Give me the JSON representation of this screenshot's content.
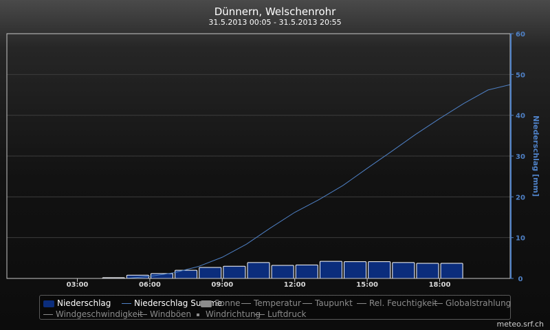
{
  "chart_data": {
    "type": "bar",
    "title": "Dünnern, Welschenrohr",
    "subtitle": "31.5.2013 00:05 - 31.5.2013 20:55",
    "x_ticks": [
      "03:00",
      "06:00",
      "09:00",
      "12:00",
      "15:00",
      "18:00"
    ],
    "x_tick_hours": [
      3,
      6,
      9,
      12,
      15,
      18
    ],
    "xlim_hours": [
      0.083,
      20.917
    ],
    "ylabel_right": "Niederschlag [mm]",
    "ylim": [
      0,
      60
    ],
    "y_ticks": [
      0,
      10,
      20,
      30,
      40,
      50,
      60
    ],
    "grid": true,
    "series": [
      {
        "name": "Niederschlag",
        "kind": "bar",
        "color": "#0b2d7c",
        "bar_hours": [
          4.5,
          5.5,
          6.5,
          7.5,
          8.5,
          9.5,
          10.5,
          11.5,
          12.5,
          13.5,
          14.5,
          15.5,
          16.5,
          17.5,
          18.5,
          19.5,
          20.5
        ],
        "values": [
          0.2,
          0.8,
          1.2,
          2.0,
          2.7,
          3.0,
          3.9,
          3.2,
          3.3,
          4.2,
          4.1,
          4.1,
          3.9,
          3.7,
          3.7,
          0,
          0
        ]
      },
      {
        "name": "Niederschlag Summe",
        "kind": "line",
        "color": "#4f81c6",
        "x_hours": [
          0.083,
          5,
          6,
          7,
          8,
          9,
          10,
          11,
          12,
          13,
          14,
          15,
          16,
          17,
          18,
          19,
          20,
          20.917
        ],
        "values": [
          0,
          0,
          0.5,
          1.4,
          2.9,
          5.2,
          8.4,
          12.4,
          16.2,
          19.3,
          22.8,
          27.0,
          31.1,
          35.3,
          39.2,
          42.9,
          46.2,
          47.5
        ]
      }
    ]
  },
  "legend": {
    "items": [
      {
        "label": "Niederschlag",
        "symbol": "rect",
        "color": "#0b2d7c",
        "state": "active"
      },
      {
        "label": "Niederschlag Summe",
        "symbol": "line",
        "color": "#4f81c6",
        "state": "active"
      },
      {
        "label": "Sonne",
        "symbol": "rect",
        "color": "#8c8c8c",
        "state": "inactive"
      },
      {
        "label": "Temperatur",
        "symbol": "line",
        "color": "#8c8c8c",
        "state": "inactive"
      },
      {
        "label": "Taupunkt",
        "symbol": "line",
        "color": "#8c8c8c",
        "state": "inactive"
      },
      {
        "label": "Rel. Feuchtigkeit",
        "symbol": "line",
        "color": "#8c8c8c",
        "state": "inactive"
      },
      {
        "label": "Globalstrahlung",
        "symbol": "line",
        "color": "#8c8c8c",
        "state": "inactive"
      },
      {
        "label": "Windgeschwindigkeit",
        "symbol": "line",
        "color": "#8c8c8c",
        "state": "inactive"
      },
      {
        "label": "Windböen",
        "symbol": "line",
        "color": "#8c8c8c",
        "state": "inactive"
      },
      {
        "label": "Windrichtung",
        "symbol": "dot",
        "color": "#8c8c8c",
        "state": "inactive"
      },
      {
        "label": "Luftdruck",
        "symbol": "line",
        "color": "#8c8c8c",
        "state": "inactive"
      }
    ]
  },
  "credit": "meteo.srf.ch",
  "colors": {
    "axis": "#c8c8c8",
    "grid": "#3c3c3c",
    "right_axis_text": "#4f81c6",
    "bar_border": "#ffffff"
  }
}
